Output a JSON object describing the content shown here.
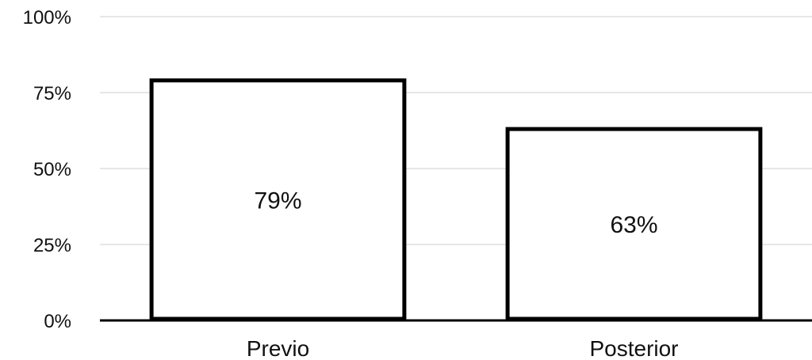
{
  "chart_data": {
    "type": "bar",
    "categories": [
      "Previo",
      "Posterior"
    ],
    "values": [
      79,
      63
    ],
    "data_labels": [
      "79%",
      "63%"
    ],
    "ylim": [
      0,
      100
    ],
    "yticks": [
      0,
      25,
      50,
      75,
      100
    ],
    "ytick_labels": [
      "0%",
      "25%",
      "50%",
      "75%",
      "100%"
    ],
    "grid": true,
    "legend": "none",
    "colors": {
      "bar_fill": "#ffffff",
      "bar_stroke": "#000000",
      "grid": "#cccccc",
      "axis": "#000000"
    }
  }
}
